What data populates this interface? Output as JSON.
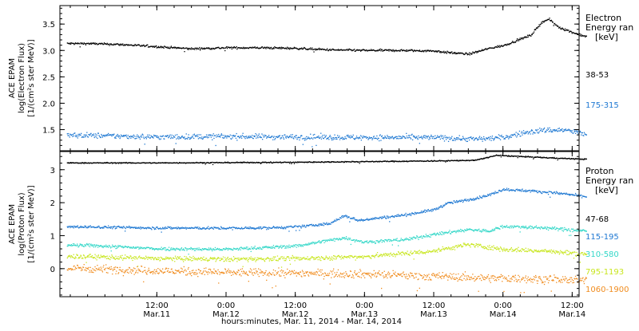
{
  "chart_data": [
    {
      "type": "scatter",
      "panel": "electron",
      "ylabel_lines": [
        "ACE EPAM",
        "log(Electron Flux)",
        "[1/(cm²s ster MeV)]"
      ],
      "ylim": [
        1.1,
        3.85
      ],
      "yticks": [
        1.5,
        2.0,
        2.5,
        3.0,
        3.5
      ],
      "ytick_labels": [
        "1.5",
        "2.0",
        "2.5",
        "3.0",
        "3.5"
      ],
      "legend_title": [
        "Electron",
        "Energy ran",
        "[keV]"
      ],
      "series": [
        {
          "name": "38-53",
          "color": "#000000",
          "base": [
            [
              0,
              3.14
            ],
            [
              0.25,
              3.12
            ],
            [
              0.5,
              3.08
            ],
            [
              0.75,
              3.04
            ],
            [
              1.0,
              3.06
            ],
            [
              1.25,
              3.06
            ],
            [
              1.5,
              3.05
            ],
            [
              1.75,
              3.02
            ],
            [
              2.0,
              3.01
            ],
            [
              2.25,
              3.01
            ],
            [
              2.5,
              3.0
            ],
            [
              2.6,
              2.97
            ],
            [
              2.75,
              2.94
            ],
            [
              2.9,
              3.05
            ],
            [
              3.0,
              3.1
            ],
            [
              3.1,
              3.2
            ],
            [
              3.2,
              3.3
            ],
            [
              3.28,
              3.55
            ],
            [
              3.33,
              3.6
            ],
            [
              3.4,
              3.45
            ],
            [
              3.5,
              3.35
            ],
            [
              3.6,
              3.27
            ]
          ],
          "spread": 0.02
        },
        {
          "name": "175-315",
          "color": "#1e78d2",
          "base": [
            [
              0,
              1.4
            ],
            [
              0.5,
              1.37
            ],
            [
              1.0,
              1.38
            ],
            [
              1.5,
              1.37
            ],
            [
              2.0,
              1.36
            ],
            [
              2.5,
              1.36
            ],
            [
              2.8,
              1.33
            ],
            [
              3.0,
              1.36
            ],
            [
              3.15,
              1.45
            ],
            [
              3.3,
              1.5
            ],
            [
              3.45,
              1.5
            ],
            [
              3.6,
              1.42
            ]
          ],
          "spread": 0.05
        }
      ]
    },
    {
      "type": "scatter",
      "panel": "proton",
      "ylabel_lines": [
        "ACE EPAM",
        "log(Proton Flux)",
        "[1/(cm²s ster MeV)]"
      ],
      "ylim": [
        -0.85,
        3.55
      ],
      "yticks": [
        0,
        1,
        2,
        3
      ],
      "ytick_labels": [
        "0",
        "1",
        "2",
        "3"
      ],
      "legend_title": [
        "Proton",
        "Energy ran",
        "[keV]"
      ],
      "series": [
        {
          "name": "47-68",
          "color": "#000000",
          "base": [
            [
              0,
              3.22
            ],
            [
              0.5,
              3.22
            ],
            [
              1.0,
              3.23
            ],
            [
              1.5,
              3.24
            ],
            [
              2.0,
              3.26
            ],
            [
              2.5,
              3.28
            ],
            [
              2.8,
              3.3
            ],
            [
              2.95,
              3.45
            ],
            [
              3.1,
              3.42
            ],
            [
              3.3,
              3.38
            ],
            [
              3.6,
              3.33
            ]
          ],
          "spread": 0.015
        },
        {
          "name": "115-195",
          "color": "#1e78d2",
          "base": [
            [
              0,
              1.28
            ],
            [
              0.5,
              1.25
            ],
            [
              1.0,
              1.24
            ],
            [
              1.3,
              1.25
            ],
            [
              1.5,
              1.28
            ],
            [
              1.75,
              1.38
            ],
            [
              1.85,
              1.62
            ],
            [
              1.95,
              1.48
            ],
            [
              2.1,
              1.55
            ],
            [
              2.3,
              1.65
            ],
            [
              2.5,
              1.8
            ],
            [
              2.6,
              2.0
            ],
            [
              2.75,
              2.1
            ],
            [
              2.9,
              2.25
            ],
            [
              3.0,
              2.42
            ],
            [
              3.2,
              2.37
            ],
            [
              3.4,
              2.3
            ],
            [
              3.6,
              2.2
            ]
          ],
          "spread": 0.04
        },
        {
          "name": "310-580",
          "color": "#33d7c8",
          "base": [
            [
              0,
              0.72
            ],
            [
              0.5,
              0.62
            ],
            [
              1.0,
              0.6
            ],
            [
              1.5,
              0.7
            ],
            [
              1.85,
              0.95
            ],
            [
              2.0,
              0.82
            ],
            [
              2.3,
              0.9
            ],
            [
              2.5,
              1.05
            ],
            [
              2.75,
              1.2
            ],
            [
              2.9,
              1.15
            ],
            [
              3.0,
              1.3
            ],
            [
              3.3,
              1.25
            ],
            [
              3.6,
              1.15
            ]
          ],
          "spread": 0.05
        },
        {
          "name": "795-1193",
          "color": "#c8e61e",
          "base": [
            [
              0,
              0.38
            ],
            [
              0.5,
              0.32
            ],
            [
              1.0,
              0.3
            ],
            [
              1.5,
              0.32
            ],
            [
              2.0,
              0.38
            ],
            [
              2.5,
              0.55
            ],
            [
              2.75,
              0.75
            ],
            [
              3.0,
              0.6
            ],
            [
              3.3,
              0.55
            ],
            [
              3.6,
              0.45
            ]
          ],
          "spread": 0.07
        },
        {
          "name": "1060-1900",
          "color": "#f08c1e",
          "base": [
            [
              0,
              0.02
            ],
            [
              0.5,
              -0.05
            ],
            [
              1.0,
              -0.1
            ],
            [
              1.5,
              -0.12
            ],
            [
              2.0,
              -0.15
            ],
            [
              2.5,
              -0.22
            ],
            [
              3.0,
              -0.28
            ],
            [
              3.3,
              -0.3
            ],
            [
              3.6,
              -0.35
            ]
          ],
          "spread": 0.12
        }
      ]
    }
  ],
  "x_axis": {
    "tick_labels": [
      [
        "12:00",
        "Mar.11"
      ],
      [
        "0:00",
        "Mar.12"
      ],
      [
        "12:00",
        "Mar.12"
      ],
      [
        "0:00",
        "Mar.13"
      ],
      [
        "12:00",
        "Mar.13"
      ],
      [
        "0:00",
        "Mar.14"
      ],
      [
        "12:00",
        "Mar.14"
      ]
    ],
    "tick_days": [
      0.5,
      1.0,
      1.5,
      2.0,
      2.5,
      3.0,
      3.5
    ],
    "xlabel": "hours:minutes, Mar. 11, 2014 - Mar. 14, 2014"
  }
}
